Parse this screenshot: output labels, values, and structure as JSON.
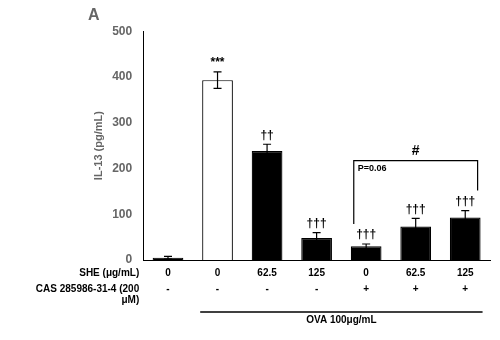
{
  "chart_data": {
    "type": "bar",
    "title": "A",
    "ylabel": "IL-13 (pg/mL)",
    "values": [
      5,
      393,
      238,
      48,
      30,
      73,
      93
    ],
    "errors": [
      3,
      18,
      15,
      12,
      5,
      18,
      15
    ],
    "colors": [
      "#000000",
      "#ffffff",
      "#000000",
      "#000000",
      "#000000",
      "#000000",
      "#000000"
    ],
    "ylim": [
      0,
      500
    ],
    "yticks": [
      0,
      100,
      200,
      300,
      400,
      500
    ],
    "grid": false,
    "x_label_rows": [
      {
        "label": "SHE (μg/mL)",
        "values": [
          "0",
          "0",
          "62.5",
          "125",
          "0",
          "62.5",
          "125"
        ]
      },
      {
        "label": "CAS 285986-31-4 (200\nμM)",
        "values": [
          "-",
          "-",
          "-",
          "-",
          "+",
          "+",
          "+"
        ]
      }
    ],
    "group_label": {
      "text": "OVA 100μg/mL",
      "from": 1,
      "to": 6
    },
    "annotations": [
      {
        "text": "***",
        "bar": 1
      },
      {
        "text": "††",
        "bar": 2
      },
      {
        "text": "†††",
        "bar": 3
      },
      {
        "text": "†††",
        "bar": 4
      },
      {
        "text": "†††",
        "bar": 5
      },
      {
        "text": "†††",
        "bar": 6
      }
    ],
    "bracket": {
      "text": "#",
      "note": "P=0.06",
      "from": 4,
      "to": 6
    }
  }
}
